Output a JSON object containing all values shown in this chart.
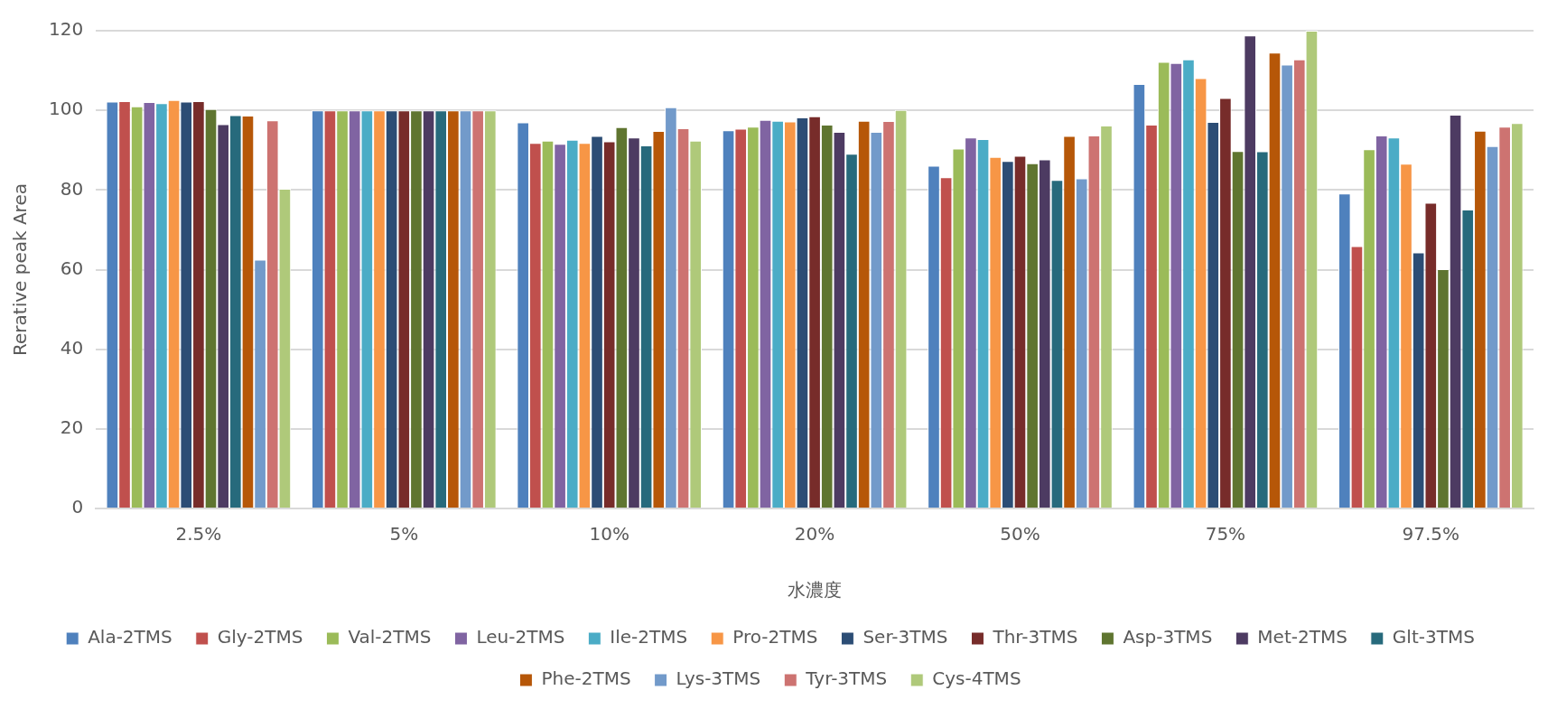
{
  "chart_data": {
    "type": "bar",
    "xlabel": "水濃度",
    "ylabel": "Rerative peak Area",
    "categories": [
      "2.5%",
      "5%",
      "10%",
      "20%",
      "50%",
      "75%",
      "97.5%"
    ],
    "ylim": [
      0,
      120
    ],
    "yticks": [
      0,
      20,
      40,
      60,
      80,
      100,
      120
    ],
    "grid": "y",
    "legend": "bottom",
    "series": [
      {
        "name": "Ala-2TMS",
        "color": "#4f81bd",
        "values": [
          102.2,
          100,
          97,
          95,
          86.1,
          106.6,
          79.1
        ]
      },
      {
        "name": "Gly-2TMS",
        "color": "#c0504d",
        "values": [
          102.3,
          100,
          91.8,
          95.4,
          83.2,
          96.4,
          65.9
        ]
      },
      {
        "name": "Val-2TMS",
        "color": "#9bbb59",
        "values": [
          101,
          100,
          92.4,
          95.9,
          90.4,
          112.2,
          90.2
        ]
      },
      {
        "name": "Leu-2TMS",
        "color": "#8064a2",
        "values": [
          102.1,
          100,
          91.6,
          97.6,
          93.2,
          111.9,
          93.7
        ]
      },
      {
        "name": "Ile-2TMS",
        "color": "#4bacc6",
        "values": [
          101.8,
          100,
          92.6,
          97.4,
          92.8,
          112.8,
          93.2
        ]
      },
      {
        "name": "Pro-2TMS",
        "color": "#f79646",
        "values": [
          102.6,
          100,
          91.8,
          97.2,
          88.3,
          108.1,
          86.6
        ]
      },
      {
        "name": "Ser-3TMS",
        "color": "#2c4d75",
        "values": [
          102.2,
          100,
          93.6,
          98.2,
          87.3,
          97.1,
          64.3
        ]
      },
      {
        "name": "Thr-3TMS",
        "color": "#772c2a",
        "values": [
          102.3,
          100,
          92.2,
          98.5,
          88.6,
          103.1,
          76.8
        ]
      },
      {
        "name": "Asp-3TMS",
        "color": "#5f7530",
        "values": [
          100.3,
          100,
          95.8,
          96.4,
          86.7,
          89.8,
          60.1
        ]
      },
      {
        "name": "Met-2TMS",
        "color": "#4d3b62",
        "values": [
          96.5,
          100,
          93.2,
          94.6,
          87.7,
          118.8,
          98.9
        ]
      },
      {
        "name": "Glt-3TMS",
        "color": "#276a7c",
        "values": [
          98.8,
          100,
          91.2,
          89.1,
          82.5,
          89.7,
          75.1
        ]
      },
      {
        "name": "Phe-2TMS",
        "color": "#b65708",
        "values": [
          98.7,
          100,
          94.8,
          97.4,
          93.6,
          114.5,
          94.9
        ]
      },
      {
        "name": "Lys-3TMS",
        "color": "#729aca",
        "values": [
          62.5,
          100,
          100.8,
          94.6,
          82.9,
          111.5,
          91
        ]
      },
      {
        "name": "Tyr-3TMS",
        "color": "#cd7371",
        "values": [
          97.5,
          100,
          95.5,
          97.3,
          93.7,
          112.8,
          95.9
        ]
      },
      {
        "name": "Cys-4TMS",
        "color": "#afc97a",
        "values": [
          80.3,
          100,
          92.4,
          100.1,
          96.2,
          120,
          96.8
        ]
      }
    ]
  }
}
